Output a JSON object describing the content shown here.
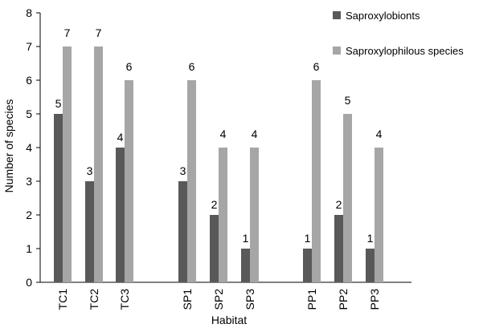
{
  "chart_data": {
    "type": "bar",
    "title": "",
    "xlabel": "Habitat",
    "ylabel": "Number of species",
    "ylim": [
      0,
      8
    ],
    "yticks": [
      0,
      1,
      2,
      3,
      4,
      5,
      6,
      7,
      8
    ],
    "grid": false,
    "legend_position": "right",
    "categories": [
      "TC1",
      "TC2",
      "TC3",
      "SP1",
      "SP2",
      "SP3",
      "PP1",
      "PP2",
      "PP3"
    ],
    "groups": [
      [
        "TC1",
        "TC2",
        "TC3"
      ],
      [
        "SP1",
        "SP2",
        "SP3"
      ],
      [
        "PP1",
        "PP2",
        "PP3"
      ]
    ],
    "series": [
      {
        "name": "Saproxylobionts",
        "color": "#595959",
        "values": [
          5,
          3,
          4,
          3,
          2,
          1,
          1,
          2,
          1
        ]
      },
      {
        "name": "Saproxylophilous species",
        "color": "#a6a6a6",
        "values": [
          7,
          7,
          6,
          6,
          4,
          4,
          6,
          5,
          4
        ]
      }
    ]
  }
}
